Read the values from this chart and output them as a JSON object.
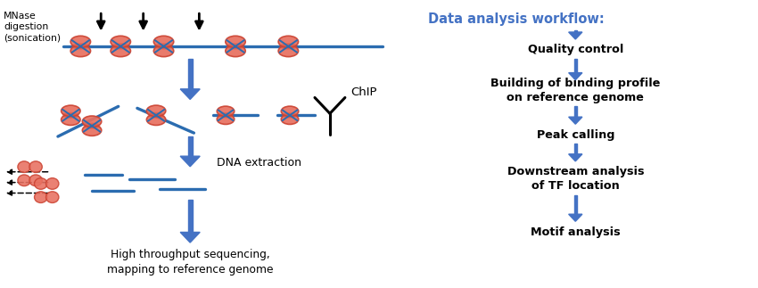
{
  "fig_width": 8.5,
  "fig_height": 3.23,
  "dpi": 100,
  "bg_color": "#ffffff",
  "dna_color": "#2B6CB0",
  "nucleosome_fill": "#E87060",
  "nucleosome_edge": "#CC4433",
  "arrow_fill": "#4472C4",
  "black": "#000000",
  "workflow_title": "Data analysis workflow:",
  "workflow_title_color": "#4472C4",
  "workflow_steps": [
    "Quality control",
    "Building of binding profile\non reference genome",
    "Peak calling",
    "Downstream analysis\nof TF location",
    "Motif analysis"
  ],
  "label_mnase": "MNase\ndigestion\n(sonication)",
  "label_chip": "ChIP",
  "label_dna": "DNA extraction",
  "label_seq": "High throughput sequencing,\nmapping to reference genome",
  "xlim": [
    0,
    10
  ],
  "ylim": [
    0,
    3.23
  ]
}
